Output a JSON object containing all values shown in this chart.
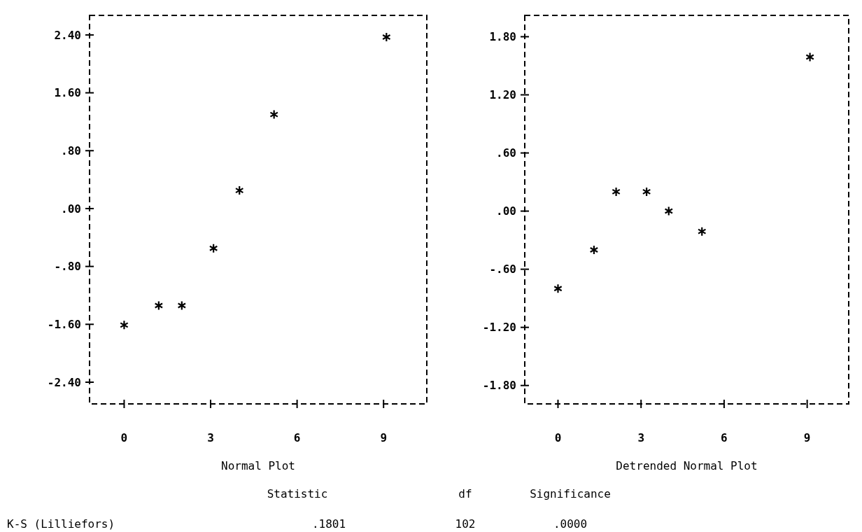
{
  "chart_data": [
    {
      "type": "scatter",
      "xlabel": "Normal Plot",
      "x": [
        0,
        1.2,
        2.0,
        3.1,
        4.0,
        5.2,
        9.1
      ],
      "values": [
        -1.61,
        -1.34,
        -1.34,
        -0.55,
        0.25,
        1.3,
        2.37
      ],
      "color": "#000000",
      "marker": "cross",
      "xlim": [
        -1.2,
        10.5
      ],
      "xticks": [
        0,
        3,
        6,
        9
      ],
      "ylim": [
        -2.7,
        2.67
      ],
      "yticks": [
        {
          "value": 2.4,
          "label": "2.40"
        },
        {
          "value": 1.6,
          "label": "1.60"
        },
        {
          "value": 0.8,
          "label": ".80"
        },
        {
          "value": 0,
          "label": ".00"
        },
        {
          "value": -0.8,
          "label": "-.80"
        },
        {
          "value": -1.6,
          "label": "-1.60"
        },
        {
          "value": -2.4,
          "label": "-2.40"
        }
      ],
      "grid": false,
      "annotations": [
        "Statistic",
        "df",
        "Significance",
        "K-S (Lilliefors)",
        ".1801",
        "102",
        ".0000"
      ]
    },
    {
      "type": "scatter",
      "xlabel": "Detrended Normal Plot",
      "x": [
        0,
        1.3,
        2.1,
        3.2,
        4.0,
        5.2,
        9.1
      ],
      "values": [
        -0.8,
        -0.4,
        0.2,
        0.2,
        0.0,
        -0.21,
        1.59
      ],
      "color": "#000000",
      "marker": "cross",
      "xlim": [
        -1.2,
        10.5
      ],
      "xticks": [
        0,
        3,
        6,
        9
      ],
      "ylim": [
        -1.99,
        2.02
      ],
      "yticks": [
        {
          "value": 1.8,
          "label": "1.80"
        },
        {
          "value": 1.2,
          "label": "1.20"
        },
        {
          "value": 0.6,
          "label": ".60"
        },
        {
          "value": 0,
          "label": ".00"
        },
        {
          "value": -0.6,
          "label": "-.60"
        },
        {
          "value": -1.2,
          "label": "-1.20"
        },
        {
          "value": -1.8,
          "label": "-1.80"
        }
      ],
      "grid": false
    }
  ]
}
